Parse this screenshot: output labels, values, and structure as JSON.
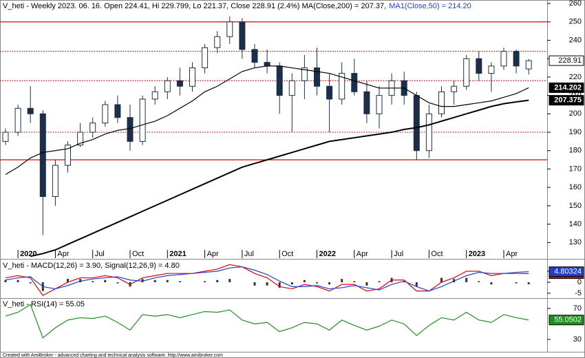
{
  "chart_data": [
    {
      "type": "candlestick",
      "title": "V_heti - Weekly 2023. 06. 16. Open 224.41, Hi 229.799, Lo 221.37, Close 228.91 (2.4%) MA(Close,200) = 207.37,",
      "categories": [
        null,
        "2020",
        null,
        null,
        "Apr",
        null,
        null,
        "Jul",
        null,
        null,
        "Oct",
        null,
        null,
        "2021",
        null,
        null,
        "Apr",
        null,
        null,
        "Jul",
        null,
        null,
        "Oct",
        null,
        null,
        "2022",
        null,
        null,
        "Apr",
        null,
        null,
        "Jul",
        null,
        null,
        "Oct",
        null,
        null,
        "2023",
        null,
        null,
        "Apr",
        null,
        null
      ],
      "ohlc": [
        [
          185,
          192,
          183,
          190
        ],
        [
          190,
          205,
          188,
          203
        ],
        [
          203,
          215,
          195,
          200
        ],
        [
          200,
          202,
          134,
          155
        ],
        [
          155,
          175,
          150,
          172
        ],
        [
          172,
          185,
          168,
          183
        ],
        [
          183,
          195,
          182,
          190
        ],
        [
          190,
          198,
          187,
          195
        ],
        [
          195,
          207,
          193,
          205
        ],
        [
          205,
          210,
          195,
          198
        ],
        [
          198,
          205,
          180,
          185
        ],
        [
          185,
          210,
          183,
          208
        ],
        [
          208,
          215,
          205,
          212
        ],
        [
          212,
          220,
          208,
          218
        ],
        [
          218,
          225,
          210,
          215
        ],
        [
          215,
          228,
          212,
          225
        ],
        [
          225,
          238,
          222,
          236
        ],
        [
          236,
          245,
          233,
          242
        ],
        [
          242,
          253,
          238,
          250
        ],
        [
          250,
          252,
          230,
          235
        ],
        [
          235,
          238,
          225,
          228
        ],
        [
          228,
          235,
          222,
          226
        ],
        [
          226,
          228,
          200,
          210
        ],
        [
          210,
          222,
          190,
          218
        ],
        [
          218,
          232,
          208,
          225
        ],
        [
          225,
          236,
          210,
          215
        ],
        [
          215,
          222,
          190,
          208
        ],
        [
          208,
          228,
          205,
          222
        ],
        [
          222,
          230,
          210,
          212
        ],
        [
          212,
          218,
          195,
          200
        ],
        [
          200,
          215,
          192,
          210
        ],
        [
          210,
          222,
          205,
          218
        ],
        [
          218,
          223,
          205,
          210
        ],
        [
          210,
          212,
          175,
          180
        ],
        [
          180,
          205,
          176,
          200
        ],
        [
          200,
          215,
          198,
          212
        ],
        [
          212,
          218,
          205,
          215
        ],
        [
          215,
          232,
          213,
          230
        ],
        [
          230,
          234,
          218,
          222
        ],
        [
          222,
          228,
          212,
          226
        ],
        [
          226,
          236,
          224,
          234
        ],
        [
          234,
          235,
          222,
          226
        ],
        [
          224.41,
          229.799,
          221.37,
          228.91
        ]
      ],
      "up_color": "#ffffff",
      "down_color": "#1c2e4a",
      "last_value": 228.91,
      "series": [
        {
          "name": "MA(Close,200)",
          "color": "#000000",
          "last_value": 207.375,
          "values": [
            null,
            null,
            122.5,
            124,
            126,
            129,
            132,
            135,
            138,
            141,
            144,
            147,
            150,
            153,
            156,
            159,
            162,
            165,
            168,
            171,
            173,
            175,
            177,
            179,
            181,
            183,
            185,
            186,
            187,
            188,
            189,
            190,
            191.5,
            192.5,
            194,
            196,
            198,
            200,
            202,
            204,
            205.5,
            206.5,
            207.375
          ]
        },
        {
          "name": "MA1(Close,50) = 214.20",
          "color": "#000000",
          "last_value": 214.202,
          "values": [
            167,
            171,
            176,
            179,
            180,
            181,
            184,
            186,
            189,
            191,
            192,
            194,
            196,
            199,
            203,
            207,
            212,
            215,
            219,
            223,
            225,
            226,
            226,
            225,
            224,
            223,
            222,
            220,
            218,
            216,
            214,
            214,
            214,
            210,
            206,
            204,
            204,
            205,
            206,
            207,
            209,
            211,
            214.202
          ]
        }
      ],
      "hlines": [
        {
          "value": 250,
          "style": "solid"
        },
        {
          "value": 234,
          "style": "dotted"
        },
        {
          "value": 218,
          "style": "dotted"
        },
        {
          "value": 190,
          "style": "dotted"
        },
        {
          "value": 175,
          "style": "solid"
        }
      ],
      "hline_color": "#e00000",
      "ylim": [
        121.5,
        261.9
      ],
      "yticks": [
        130,
        140,
        150,
        160,
        170,
        180,
        190,
        200,
        210,
        220,
        230,
        240,
        250,
        260
      ]
    },
    {
      "type": "line",
      "title": "V_heti - MACD(12,26) = 3.90, Signal(12,26,9) = 4.80",
      "series": [
        {
          "name": "MACD(12,26)",
          "color": "#e00000",
          "last_value": 3.8969,
          "values": [
            2,
            3,
            2,
            -6,
            -3,
            0,
            2,
            2,
            3,
            2,
            -1,
            2,
            3,
            4,
            4,
            4,
            5,
            6,
            8,
            7,
            4,
            2,
            -2,
            -3,
            -1,
            -2,
            -4,
            -1,
            -1,
            -4,
            -3,
            1,
            1,
            -4,
            -4,
            0,
            2,
            5,
            5,
            3,
            4,
            4,
            3.8969
          ]
        },
        {
          "name": "Signal(12,26,9)",
          "color": "#1f3fcf",
          "last_value": 4.80324,
          "values": [
            1,
            2,
            2.5,
            -2,
            -3,
            -1.5,
            0.5,
            1.5,
            2,
            2.5,
            1,
            0.5,
            2,
            3,
            3.5,
            4,
            4.5,
            5,
            6.5,
            7,
            5.5,
            3.5,
            0.5,
            -2,
            -2,
            -1.5,
            -3,
            -2.5,
            -1.5,
            -2.5,
            -3.5,
            -1,
            0.5,
            -2,
            -4,
            -2,
            0.5,
            3,
            4.5,
            4,
            4,
            4.5,
            4.80324
          ]
        }
      ],
      "histogram": [
        1,
        1,
        -0.5,
        -4,
        0,
        1.5,
        1.5,
        0.5,
        1,
        -0.5,
        -2,
        1.5,
        1,
        1,
        0.5,
        0,
        0.5,
        1,
        1.5,
        0,
        -1.5,
        -1.5,
        -2.5,
        -1,
        1,
        -0.5,
        -1,
        1.5,
        0.5,
        -1.5,
        0.5,
        2,
        0.5,
        -2,
        0,
        2,
        1.5,
        2,
        0.5,
        -1,
        0,
        -0.5,
        -0.9
      ],
      "histogram_color": "#333333",
      "ylim": [
        -6.9,
        10
      ],
      "yticks": [
        5,
        0,
        -5
      ]
    },
    {
      "type": "line",
      "title": "V_heti - RSI(14) = 55.05",
      "series": [
        {
          "name": "RSI(14)",
          "color": "#1f8f1f",
          "last_value": 55.0502,
          "values": [
            60,
            65,
            75,
            32,
            45,
            55,
            58,
            57,
            60,
            52,
            42,
            62,
            60,
            62,
            58,
            62,
            66,
            65,
            68,
            55,
            50,
            52,
            40,
            45,
            52,
            50,
            42,
            55,
            48,
            42,
            47,
            55,
            50,
            35,
            48,
            58,
            55,
            65,
            55,
            52,
            62,
            58,
            55.0502
          ]
        }
      ],
      "ylim": [
        14.9,
        82.4
      ],
      "yticks": [
        70,
        30
      ]
    }
  ],
  "footer": "Created with AmiBroker - advanced charting and technical analysis software. http://www.amibroker.com"
}
